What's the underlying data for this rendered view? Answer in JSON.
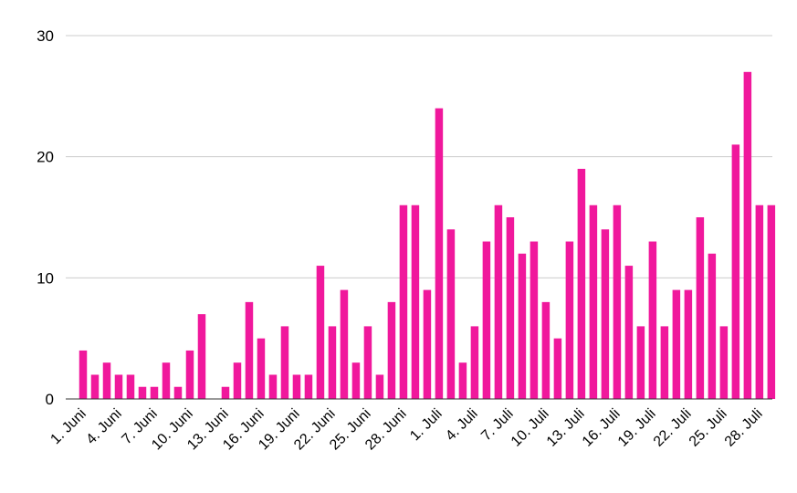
{
  "chart_data": {
    "type": "bar",
    "title": "",
    "xlabel": "",
    "ylabel": "",
    "ylim": [
      0,
      30
    ],
    "y_ticks": [
      "0",
      "10",
      "20",
      "30"
    ],
    "grid": true,
    "legend": "none",
    "bar_color": "#f0189c",
    "categories": [
      "1. Juni",
      "2. Juni",
      "3. Juni",
      "4. Juni",
      "5. Juni",
      "6. Juni",
      "7. Juni",
      "8. Juni",
      "9. Juni",
      "10. Juni",
      "11. Juni",
      "12. Juni",
      "13. Juni",
      "14. Juni",
      "15. Juni",
      "16. Juni",
      "17. Juni",
      "18. Juni",
      "19. Juni",
      "20. Juni",
      "21. Juni",
      "22. Juni",
      "23. Juni",
      "24. Juni",
      "25. Juni",
      "26. Juni",
      "27. Juni",
      "28. Juni",
      "29. Juni",
      "30. Juni",
      "1. Juli",
      "2. Juli",
      "3. Juli",
      "4. Juli",
      "5. Juli",
      "6. Juli",
      "7. Juli",
      "8. Juli",
      "9. Juli",
      "10. Juli",
      "11. Juli",
      "12. Juli",
      "13. Juli",
      "14. Juli",
      "15. Juli",
      "16. Juli",
      "17. Juli",
      "18. Juli",
      "19. Juli",
      "20. Juli",
      "21. Juli",
      "22. Juli",
      "23. Juli",
      "24. Juli",
      "25. Juli",
      "26. Juli",
      "27. Juli",
      "28. Juli",
      "29. Juli"
    ],
    "x_tick_labels": [
      "1. Juni",
      "4. Juni",
      "7. Juni",
      "10. Juni",
      "13. Juni",
      "16. Juni",
      "19. Juni",
      "22. Juni",
      "25. Juni",
      "28. Juni",
      "1. Juli",
      "4. Juli",
      "7. Juli",
      "10. Juli",
      "13. Juli",
      "16. Juli",
      "19. Juli",
      "22. Juli",
      "25. Juli",
      "28. Juli"
    ],
    "values": [
      4,
      2,
      3,
      2,
      2,
      1,
      1,
      3,
      1,
      4,
      7,
      0,
      1,
      3,
      8,
      5,
      2,
      6,
      2,
      2,
      11,
      6,
      9,
      3,
      6,
      2,
      8,
      16,
      16,
      9,
      24,
      14,
      3,
      6,
      13,
      16,
      15,
      12,
      13,
      8,
      5,
      13,
      19,
      16,
      14,
      16,
      11,
      6,
      13,
      6,
      9,
      9,
      15,
      12,
      6,
      21,
      27,
      16,
      16
    ]
  }
}
